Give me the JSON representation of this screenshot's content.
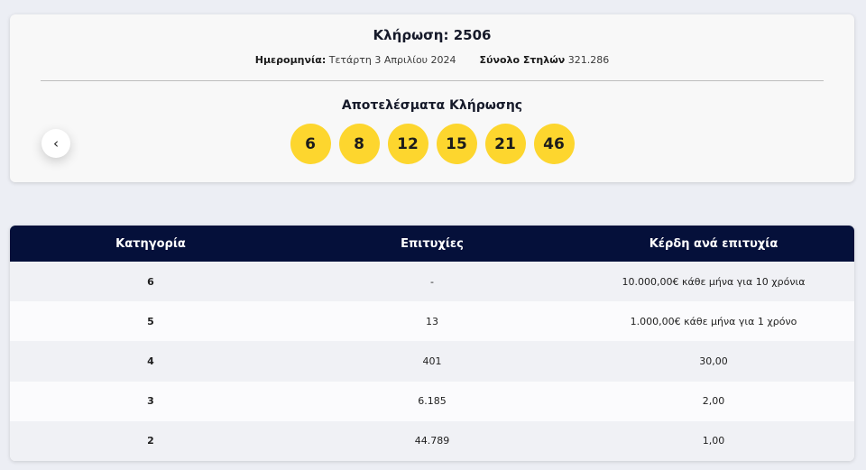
{
  "draw": {
    "title": "Κλήρωση: 2506",
    "date_label": "Ημερομηνία:",
    "date_value": "Τετάρτη 3 Απριλίου 2024",
    "columns_label": "Σύνολο Στηλών",
    "columns_value": "321.286",
    "results_title": "Αποτελέσματα Κλήρωσης",
    "numbers": [
      "6",
      "8",
      "12",
      "15",
      "21",
      "46"
    ],
    "ball_color": "#fdd62e",
    "prev_icon": "chevron-left-icon",
    "prev_glyph": "‹"
  },
  "table": {
    "header_color": "#05103a",
    "headers": [
      "Κατηγορία",
      "Επιτυχίες",
      "Κέρδη ανά επιτυχία"
    ],
    "rows": [
      {
        "category": "6",
        "winners": "-",
        "prize": "10.000,00€ κάθε μήνα για 10 χρόνια"
      },
      {
        "category": "5",
        "winners": "13",
        "prize": "1.000,00€ κάθε μήνα για 1 χρόνο"
      },
      {
        "category": "4",
        "winners": "401",
        "prize": "30,00"
      },
      {
        "category": "3",
        "winners": "6.185",
        "prize": "2,00"
      },
      {
        "category": "2",
        "winners": "44.789",
        "prize": "1,00"
      }
    ]
  }
}
